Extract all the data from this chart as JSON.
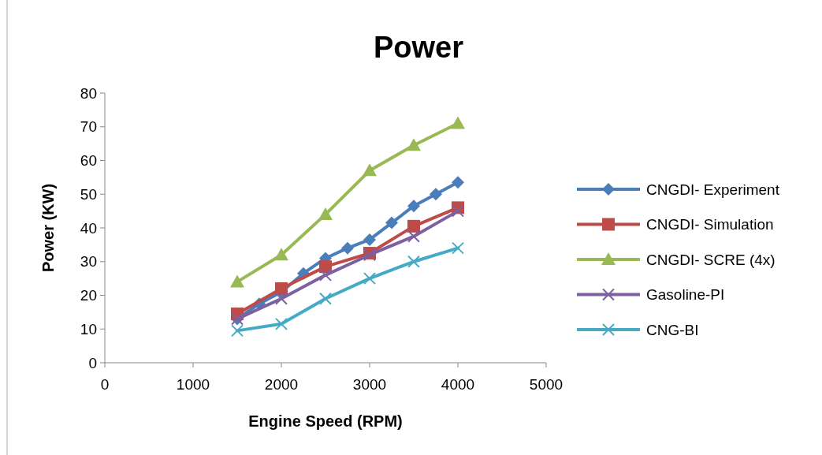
{
  "chart_data": {
    "type": "line",
    "title": "Power",
    "xlabel": "Engine Speed (RPM)",
    "ylabel": "Power (KW)",
    "xlim": [
      0,
      5000
    ],
    "xticks": [
      0,
      1000,
      2000,
      3000,
      4000,
      5000
    ],
    "ylim": [
      0,
      80
    ],
    "yticks": [
      0,
      10,
      20,
      30,
      40,
      50,
      60,
      70,
      80
    ],
    "grid": false,
    "legend": "right",
    "series": [
      {
        "name": "CNGDI- Experiment",
        "color": "#4a7ebb",
        "marker": "diamond",
        "x": [
          1500,
          1750,
          2000,
          2250,
          2500,
          2750,
          3000,
          3250,
          3500,
          3750,
          4000
        ],
        "values": [
          13,
          17.5,
          21,
          26.5,
          31,
          34,
          36.5,
          41.5,
          46.5,
          50,
          53.5
        ]
      },
      {
        "name": "CNGDI- Simulation",
        "color": "#be4b48",
        "marker": "square",
        "x": [
          1500,
          2000,
          2500,
          3000,
          3500,
          4000
        ],
        "values": [
          14.5,
          22,
          28.5,
          32.5,
          40.5,
          46
        ]
      },
      {
        "name": "CNGDI- SCRE (4x)",
        "color": "#98b954",
        "marker": "triangle",
        "x": [
          1500,
          2000,
          2500,
          3000,
          3500,
          4000
        ],
        "values": [
          24,
          32,
          44,
          57,
          64.5,
          71
        ]
      },
      {
        "name": "Gasoline-PI",
        "color": "#7d60a0",
        "marker": "cross",
        "x": [
          1500,
          2000,
          2500,
          3000,
          3500,
          4000
        ],
        "values": [
          13,
          19,
          26,
          32,
          37.5,
          45
        ]
      },
      {
        "name": "CNG-BI",
        "color": "#46aac5",
        "marker": "cross",
        "x": [
          1500,
          2000,
          2500,
          3000,
          3500,
          4000
        ],
        "values": [
          9.5,
          11.5,
          19,
          25,
          30,
          34
        ]
      }
    ]
  }
}
